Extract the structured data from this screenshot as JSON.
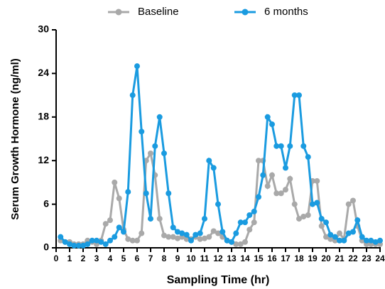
{
  "chart_data": {
    "type": "line",
    "x_label": "Sampling Time (hr)",
    "y_label": "Serum Growth Hormone (ng/ml)",
    "x": [
      0.33,
      0.67,
      1,
      1.33,
      1.67,
      2,
      2.33,
      2.67,
      3,
      3.33,
      3.67,
      4,
      4.33,
      4.67,
      5,
      5.33,
      5.67,
      6,
      6.33,
      6.67,
      7,
      7.33,
      7.67,
      8,
      8.33,
      8.67,
      9,
      9.33,
      9.67,
      10,
      10.33,
      10.67,
      11,
      11.33,
      11.67,
      12,
      12.33,
      12.67,
      13,
      13.33,
      13.67,
      14,
      14.33,
      14.67,
      15,
      15.33,
      15.67,
      16,
      16.33,
      16.67,
      17,
      17.33,
      17.67,
      18,
      18.33,
      18.67,
      19,
      19.33,
      19.67,
      20,
      20.33,
      20.67,
      21,
      21.33,
      21.67,
      22,
      22.33,
      22.67,
      23,
      23.33,
      23.67,
      24
    ],
    "series": [
      {
        "name": "Baseline",
        "color": "#a9a9a9",
        "values": [
          1.0,
          0.8,
          0.8,
          0.5,
          0.5,
          0.5,
          1.0,
          0.8,
          0.5,
          1.0,
          3.3,
          3.8,
          9,
          6.8,
          2.5,
          1.2,
          1.0,
          1.0,
          2.0,
          12,
          13,
          10,
          4,
          1.7,
          1.5,
          1.5,
          1.3,
          1.5,
          1.2,
          1.2,
          1.5,
          1.2,
          1.3,
          1.5,
          2.3,
          2.0,
          1.5,
          1.0,
          0.8,
          0.5,
          0.5,
          0.8,
          2.5,
          3.5,
          12,
          12,
          8.5,
          10,
          7.5,
          7.5,
          8,
          9.5,
          6,
          4,
          4.3,
          4.5,
          9.2,
          9.2,
          3,
          1.5,
          1.2,
          1.0,
          2,
          1.2,
          6,
          6.5,
          3,
          1.0,
          0.5,
          0.5,
          0.5,
          0.5
        ]
      },
      {
        "name": "6 months",
        "color": "#1a9be0",
        "values": [
          1.5,
          0.8,
          0.5,
          0.3,
          0.3,
          0.3,
          0.5,
          1.0,
          1.0,
          0.8,
          0.5,
          1.0,
          1.5,
          2.8,
          2.2,
          7.7,
          21,
          25,
          16,
          7.5,
          4,
          14,
          18,
          13,
          7.5,
          2.8,
          2.2,
          2.0,
          1.8,
          1.0,
          1.8,
          2.0,
          4,
          12,
          11,
          6,
          2.2,
          1.0,
          0.8,
          2.0,
          3.5,
          3.5,
          4.5,
          5,
          7,
          10,
          18,
          17,
          14,
          14,
          11,
          14,
          21,
          21,
          14,
          12.5,
          6,
          6.2,
          4,
          3.5,
          1.8,
          1.5,
          1.0,
          1.0,
          2,
          2.2,
          3.8,
          1.5,
          1.0,
          1.0,
          0.8,
          1.0
        ]
      }
    ],
    "xlim": [
      0,
      24
    ],
    "xticks": [
      0,
      1,
      2,
      3,
      4,
      5,
      6,
      7,
      8,
      9,
      10,
      11,
      12,
      13,
      14,
      15,
      16,
      17,
      18,
      19,
      20,
      21,
      22,
      23,
      24
    ],
    "ylim": [
      0,
      30
    ],
    "yticks": [
      0,
      6,
      12,
      18,
      24,
      30
    ],
    "legend": "top"
  }
}
